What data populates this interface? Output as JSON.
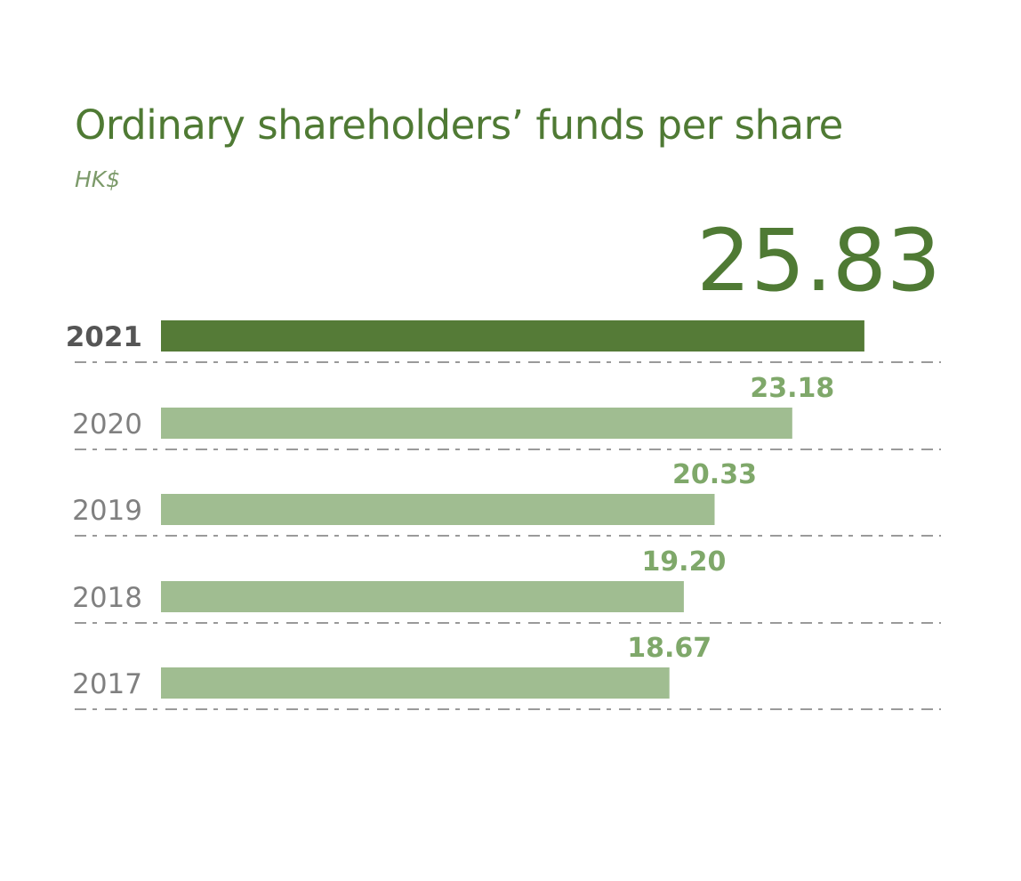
{
  "chart_data": {
    "type": "bar",
    "orientation": "horizontal",
    "title": "Ordinary shareholders’ funds per share",
    "subtitle": "HK$",
    "categories": [
      "2021",
      "2020",
      "2019",
      "2018",
      "2017"
    ],
    "values": [
      25.83,
      23.18,
      20.33,
      19.2,
      18.67
    ],
    "value_labels": [
      "25.83",
      "23.18",
      "20.33",
      "19.20",
      "18.67"
    ],
    "highlight_category": "2021",
    "grid": false,
    "colors": {
      "highlight_bar": "#557b37",
      "bar": "#a0bd91",
      "highlight_value": "#4f7a34",
      "value": "#7fa86a",
      "title": "#4f7a34",
      "highlight_category": "#555555",
      "category": "#808080",
      "divider": "#9a9a9a"
    }
  }
}
